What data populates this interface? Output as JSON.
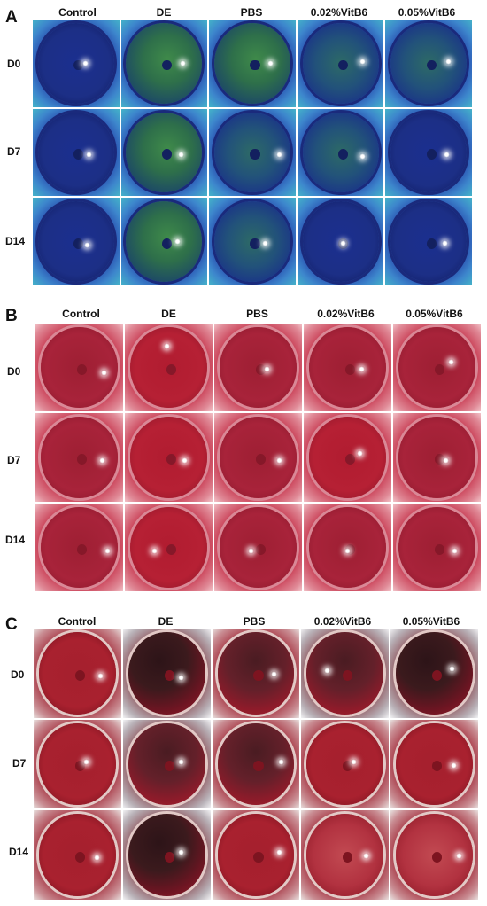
{
  "panels": [
    {
      "letter": "A",
      "stain": "fluorescein",
      "columns": [
        "Control",
        "DE",
        "PBS",
        "0.02%VitB6",
        "0.05%VitB6"
      ],
      "rows": [
        "D0",
        "D7",
        "D14"
      ]
    },
    {
      "letter": "B",
      "stain": "red",
      "columns": [
        "Control",
        "DE",
        "PBS",
        "0.02%VitB6",
        "0.05%VitB6"
      ],
      "rows": [
        "D0",
        "D7",
        "D14"
      ]
    },
    {
      "letter": "C",
      "stain": "red",
      "columns": [
        "Control",
        "DE",
        "PBS",
        "0.02%VitB6",
        "0.05%VitB6"
      ],
      "rows": [
        "D0",
        "D7",
        "D14"
      ]
    }
  ],
  "colors": {
    "fluorescein_blue": "#2340a8",
    "fluorescein_green": "#3f8a4a",
    "stain_red": "#a8233a",
    "stain_dark": "#3b1a1d"
  }
}
